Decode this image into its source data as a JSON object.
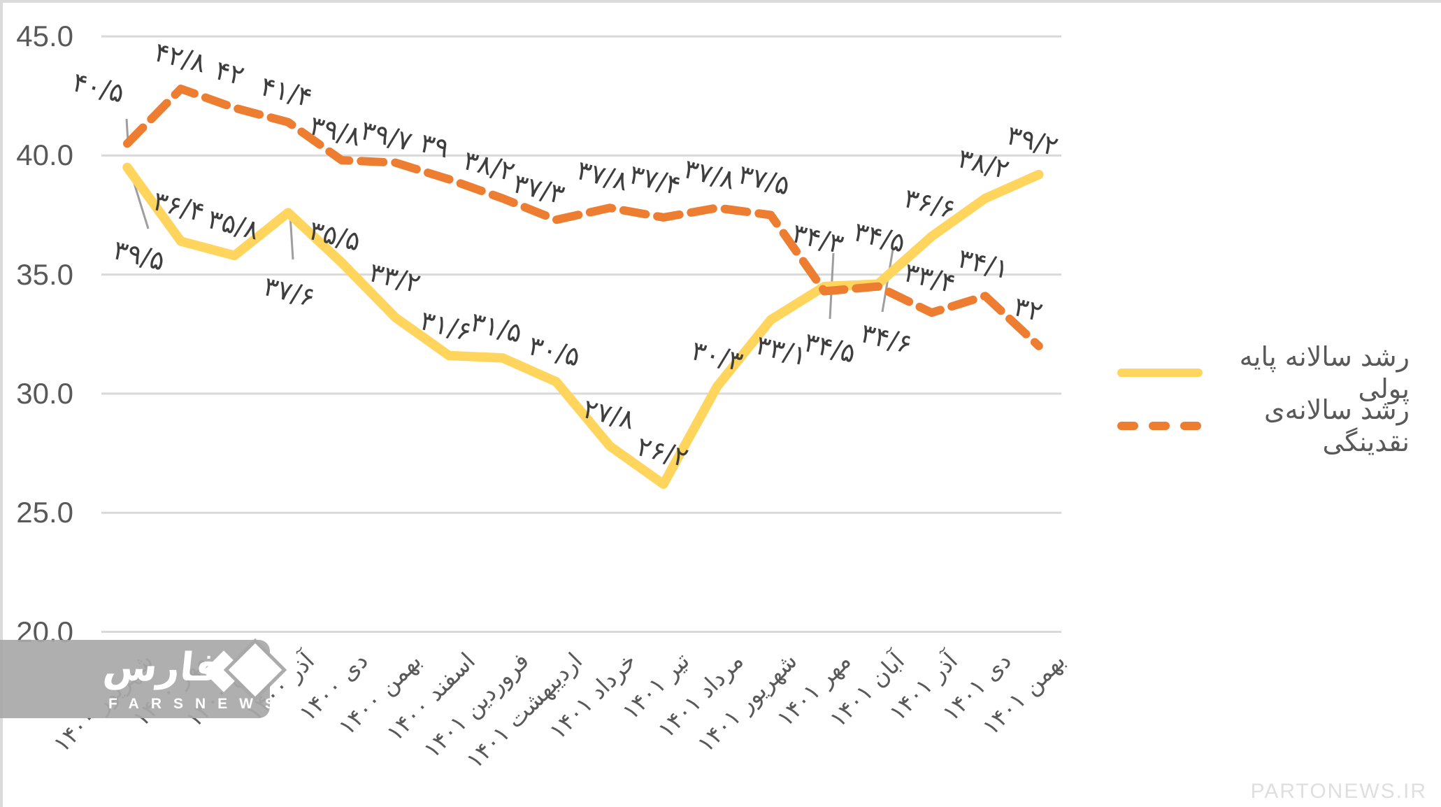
{
  "colors": {
    "monetary_base_line": "#FFD55E",
    "liquidity_line": "#ED7D31",
    "gridline": "#D9D9D9",
    "axis_text": "#595959",
    "data_label_text": "#3E3E3E",
    "leader_line": "#9E9E9E"
  },
  "y_axis": {
    "ticks": [
      "45.0",
      "40.0",
      "35.0",
      "30.0",
      "25.0",
      "20.0"
    ],
    "values": [
      45,
      40,
      35,
      30,
      25,
      20
    ]
  },
  "chart_data": {
    "type": "line",
    "title": "",
    "xlabel": "",
    "ylabel": "",
    "ylim": [
      20,
      45
    ],
    "grid": true,
    "legend_position": "right",
    "categories": [
      "شهریور ۱۴۰۰",
      "مهر ۱۴۰۰",
      "آبان ۱۴۰۰",
      "آذر ۱۴۰۰",
      "دی ۱۴۰۰",
      "بهمن ۱۴۰۰",
      "اسفند ۱۴۰۰",
      "فروردین ۱۴۰۱",
      "اردیبهشت ۱۴۰۱",
      "خرداد ۱۴۰۱",
      "تیر ۱۴۰۱",
      "مرداد ۱۴۰۱",
      "شهریور ۱۴۰۱",
      "مهر ۱۴۰۱",
      "آبان ۱۴۰۱",
      "آذر ۱۴۰۱",
      "دی ۱۴۰۱",
      "بهمن ۱۴۰۱"
    ],
    "series": [
      {
        "name": "رشد سالانه پایه پولی",
        "style": "solid",
        "color": "#FFD55E",
        "values": [
          39.5,
          36.4,
          35.8,
          37.6,
          35.5,
          33.2,
          31.6,
          31.5,
          30.5,
          27.8,
          26.2,
          30.3,
          33.1,
          34.5,
          34.6,
          36.6,
          38.2,
          39.2
        ],
        "point_labels": [
          "۳۹/۵",
          "۳۶/۴",
          "۳۵/۸",
          "۳۷/۶",
          "۳۵/۵",
          "۳۳/۲",
          "۳۱/۶",
          "۳۱/۵",
          "۳۰/۵",
          "۲۷/۸",
          "۲۶/۲",
          "۳۰/۳",
          "۳۳/۱",
          "۳۴/۵",
          "۳۴/۶",
          "۳۶/۶",
          "۳۸/۲",
          "۳۹/۲"
        ]
      },
      {
        "name": "رشد سالانه‌ی نقدینگی",
        "style": "dashed",
        "color": "#ED7D31",
        "values": [
          40.5,
          42.8,
          42,
          41.4,
          39.8,
          39.7,
          39,
          38.2,
          37.3,
          37.8,
          37.4,
          37.8,
          37.5,
          34.3,
          34.5,
          33.4,
          34.1,
          32
        ],
        "point_labels": [
          "۴۰/۵",
          "۴۲/۸",
          "۴۲",
          "۴۱/۴",
          "۳۹/۸",
          "۳۹/۷",
          "۳۹",
          "۳۸/۲",
          "۳۷/۳",
          "۳۷/۸",
          "۳۷/۴",
          "۳۷/۸",
          "۳۷/۵",
          "۳۴/۳",
          "۳۴/۵",
          "۳۳/۴",
          "۳۴/۱",
          "۳۲"
        ]
      }
    ]
  },
  "watermarks": {
    "fars_persian": "فارس",
    "fars_latin": "FARSNEWS",
    "parto": "PARTONEWS.IR"
  }
}
